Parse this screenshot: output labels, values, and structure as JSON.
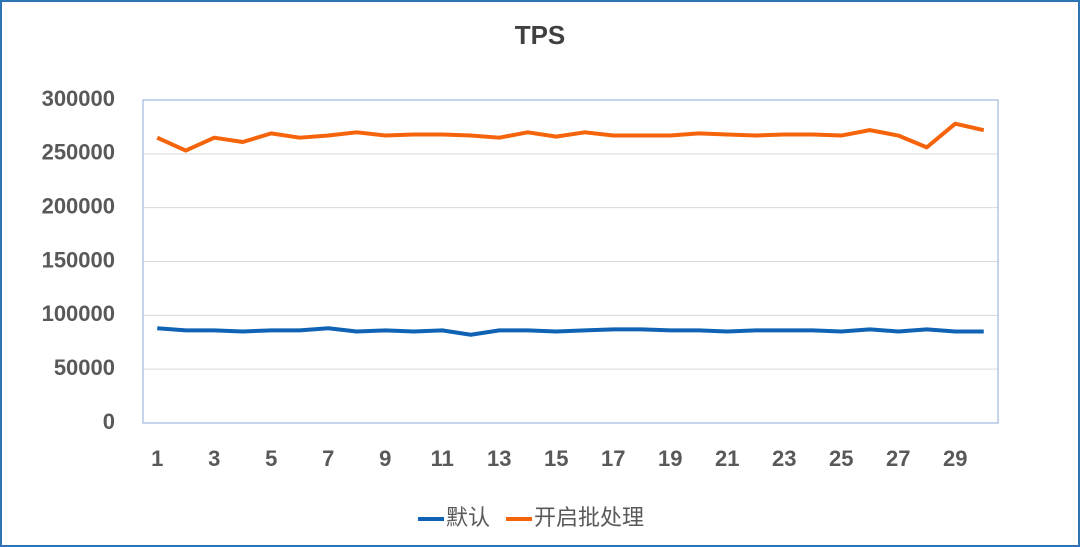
{
  "chart_data": {
    "type": "line",
    "title": "TPS",
    "categories": [
      1,
      null,
      3,
      null,
      5,
      null,
      7,
      null,
      9,
      null,
      11,
      null,
      13,
      null,
      15,
      null,
      17,
      null,
      19,
      null,
      21,
      null,
      23,
      null,
      25,
      null,
      27,
      null,
      29,
      null
    ],
    "series": [
      {
        "name": "默认",
        "color": "#0f62b4",
        "values": [
          88000,
          86000,
          86000,
          85000,
          86000,
          86000,
          88000,
          85000,
          86000,
          85000,
          86000,
          82000,
          86000,
          86000,
          85000,
          86000,
          87000,
          87000,
          86000,
          86000,
          85000,
          86000,
          86000,
          86000,
          85000,
          87000,
          85000,
          87000,
          85000,
          85000
        ]
      },
      {
        "name": "开启批处理",
        "color": "#f5640a",
        "values": [
          265000,
          253000,
          265000,
          261000,
          269000,
          265000,
          267000,
          270000,
          267000,
          268000,
          268000,
          267000,
          265000,
          270000,
          266000,
          270000,
          267000,
          267000,
          267000,
          269000,
          268000,
          267000,
          268000,
          268000,
          267000,
          272000,
          267000,
          256000,
          278000,
          272000
        ]
      }
    ],
    "ylim": [
      0,
      300000
    ],
    "yticks": [
      0,
      50000,
      100000,
      150000,
      200000,
      250000,
      300000
    ],
    "grid": true,
    "legend": "bottom"
  }
}
